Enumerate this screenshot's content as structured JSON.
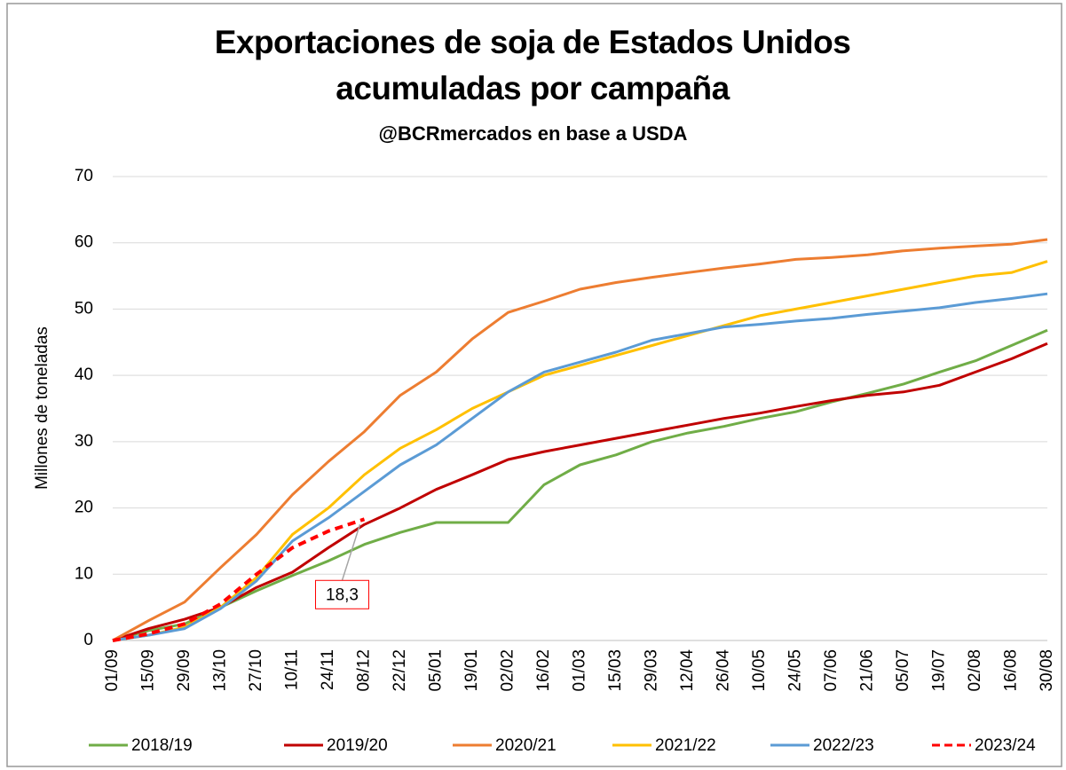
{
  "chart_data": {
    "type": "line",
    "title": "Exportaciones de soja de Estados Unidos acumuladas por campaña",
    "subtitle": "@BCRmercados en base a USDA",
    "y_label": "Millones de toneladas",
    "categories": [
      "01/09",
      "15/09",
      "29/09",
      "13/10",
      "27/10",
      "10/11",
      "24/11",
      "08/12",
      "22/12",
      "05/01",
      "19/01",
      "02/02",
      "16/02",
      "01/03",
      "15/03",
      "29/03",
      "12/04",
      "26/04",
      "10/05",
      "24/05",
      "07/06",
      "21/06",
      "05/07",
      "19/07",
      "02/08",
      "16/08",
      "30/08"
    ],
    "series": [
      {
        "name": "2018/19",
        "color": "#70ad47",
        "values": [
          0,
          1.5,
          2.5,
          5,
          7.5,
          9.8,
          12,
          14.5,
          16.3,
          17.8,
          17.8,
          17.8,
          23.5,
          26.5,
          28,
          30,
          31.3,
          32.3,
          33.5,
          34.5,
          36,
          37.3,
          38.7,
          40.5,
          42.2,
          44.5,
          46.8
        ]
      },
      {
        "name": "2019/20",
        "color": "#c00000",
        "values": [
          0,
          1.8,
          3.2,
          5,
          8,
          10.3,
          14,
          17.5,
          20,
          22.8,
          25,
          27.3,
          28.5,
          29.5,
          30.5,
          31.5,
          32.5,
          33.5,
          34.3,
          35.3,
          36.2,
          37,
          37.5,
          38.5,
          40.5,
          42.5,
          44.8
        ]
      },
      {
        "name": "2020/21",
        "color": "#ed7d31",
        "values": [
          0,
          3,
          5.8,
          11,
          16,
          22,
          27,
          31.5,
          37,
          40.5,
          45.5,
          49.5,
          51.2,
          53,
          54,
          54.8,
          55.5,
          56.2,
          56.8,
          57.5,
          57.8,
          58.2,
          58.8,
          59.2,
          59.5,
          59.8,
          60.5
        ]
      },
      {
        "name": "2021/22",
        "color": "#ffc000",
        "values": [
          0,
          0.8,
          2,
          5,
          9.5,
          16,
          20,
          25,
          29,
          31.8,
          35,
          37.5,
          40,
          41.5,
          43,
          44.5,
          46,
          47.5,
          49,
          50,
          51,
          52,
          53,
          54,
          55,
          55.5,
          57.2
        ]
      },
      {
        "name": "2022/23",
        "color": "#5b9bd5",
        "values": [
          0,
          0.8,
          1.8,
          4.8,
          9,
          15,
          18.5,
          22.5,
          26.5,
          29.5,
          33.5,
          37.5,
          40.5,
          42,
          43.5,
          45.3,
          46.3,
          47.3,
          47.7,
          48.2,
          48.6,
          49.2,
          49.7,
          50.2,
          51,
          51.6,
          52.3
        ]
      },
      {
        "name": "2023/24",
        "color": "#ff0000",
        "dashed": true,
        "values": [
          0,
          1,
          2.5,
          5.5,
          10,
          14,
          16.5,
          18.3,
          null,
          null,
          null,
          null,
          null,
          null,
          null,
          null,
          null,
          null,
          null,
          null,
          null,
          null,
          null,
          null,
          null,
          null,
          null
        ],
        "value_labels": [
          null,
          null,
          null,
          null,
          null,
          null,
          null,
          "18,3",
          null,
          null,
          null,
          null,
          null,
          null,
          null,
          null,
          null,
          null,
          null,
          null,
          null,
          null,
          null,
          null,
          null,
          null,
          null
        ]
      }
    ],
    "ylim": [
      0,
      70
    ],
    "yticks": [
      0,
      10,
      20,
      30,
      40,
      50,
      60,
      70
    ],
    "grid": true,
    "legend": "bottom"
  }
}
